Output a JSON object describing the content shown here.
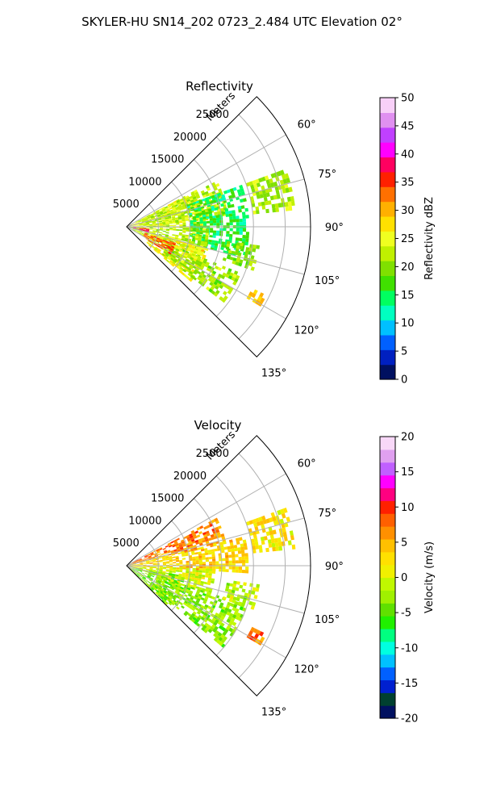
{
  "suptitle": "SKYLER-HU  SN14_202  0723_2.484 UTC Elevation 02°",
  "chart_data": [
    {
      "type": "heatmap",
      "title": "Reflectivity",
      "projection": "polar-sector",
      "radial_axis_label": "Meters",
      "radial_ticks": [
        "5000",
        "10000",
        "15000",
        "20000",
        "25000"
      ],
      "radial_tick_values": [
        5000,
        10000,
        15000,
        20000,
        25000
      ],
      "r_range": [
        0,
        29000
      ],
      "theta_range_deg": [
        45,
        135
      ],
      "angular_ticks": [
        "60°",
        "75°",
        "90°",
        "105°",
        "120°",
        "135°"
      ],
      "angular_tick_values": [
        60,
        75,
        90,
        105,
        120,
        135
      ],
      "grid": true,
      "colorbar": {
        "label": "Reflectivity dBZ",
        "range": [
          0,
          50
        ],
        "ticks": [
          "0",
          "5",
          "10",
          "15",
          "20",
          "25",
          "30",
          "35",
          "40",
          "45",
          "50"
        ],
        "tick_values": [
          0,
          5,
          10,
          15,
          20,
          25,
          30,
          35,
          40,
          45,
          50
        ],
        "colors": [
          "#001060",
          "#0020c0",
          "#0060ff",
          "#00c0ff",
          "#00ffc0",
          "#00ff60",
          "#40e000",
          "#80e000",
          "#c0f000",
          "#f0ff20",
          "#ffe000",
          "#ffb000",
          "#ff7000",
          "#ff2000",
          "#ff0060",
          "#ff00ff",
          "#c040ff",
          "#e090f0",
          "#f8d0f8"
        ]
      },
      "regions": [
        {
          "theta": [
            62,
            88
          ],
          "r": [
            0,
            12000
          ],
          "value": 24
        },
        {
          "theta": [
            63,
            85
          ],
          "r": [
            2000,
            16000
          ],
          "value": 22
        },
        {
          "theta": [
            70,
            104
          ],
          "r": [
            10000,
            19000
          ],
          "value": 15
        },
        {
          "theta": [
            88,
            118
          ],
          "r": [
            0,
            13000
          ],
          "value": 22
        },
        {
          "theta": [
            105,
            130
          ],
          "r": [
            4000,
            13000
          ],
          "value": 26
        },
        {
          "theta": [
            112,
            127
          ],
          "r": [
            7000,
            19000
          ],
          "value": 21
        },
        {
          "theta": [
            108,
            122
          ],
          "r": [
            3000,
            8000
          ],
          "value": 34
        },
        {
          "theta": [
            94,
            104
          ],
          "r": [
            1000,
            3500
          ],
          "value": 38
        },
        {
          "theta": [
            98,
            108
          ],
          "r": [
            16000,
            21000
          ],
          "value": 20
        },
        {
          "theta": [
            116,
            120
          ],
          "r": [
            22000,
            24500
          ],
          "value": 28
        },
        {
          "theta": [
            70,
            84
          ],
          "r": [
            20000,
            26500
          ],
          "value": 22
        }
      ]
    },
    {
      "type": "heatmap",
      "title": "Velocity",
      "projection": "polar-sector",
      "radial_axis_label": "Meters",
      "radial_ticks": [
        "5000",
        "10000",
        "15000",
        "20000",
        "25000"
      ],
      "radial_tick_values": [
        5000,
        10000,
        15000,
        20000,
        25000
      ],
      "r_range": [
        0,
        29000
      ],
      "theta_range_deg": [
        45,
        135
      ],
      "angular_ticks": [
        "60°",
        "75°",
        "90°",
        "105°",
        "120°",
        "135°"
      ],
      "angular_tick_values": [
        60,
        75,
        90,
        105,
        120,
        135
      ],
      "grid": true,
      "colorbar": {
        "label": "Velocity (m/s)",
        "range": [
          -20,
          20
        ],
        "ticks": [
          "-20",
          "-15",
          "-10",
          "-5",
          "0",
          "5",
          "10",
          "15",
          "20"
        ],
        "tick_values": [
          -20,
          -15,
          -10,
          -5,
          0,
          5,
          10,
          15,
          20
        ],
        "colors": [
          "#001060",
          "#004030",
          "#0020d0",
          "#0060ff",
          "#00c0ff",
          "#00ffe0",
          "#00ff80",
          "#20f000",
          "#60e000",
          "#a0f000",
          "#c0f800",
          "#f0f000",
          "#ffe000",
          "#ffc000",
          "#ff9000",
          "#ff6000",
          "#ff2000",
          "#ff0080",
          "#ff00ff",
          "#c060ff",
          "#e0a0f0",
          "#f8d8f8"
        ]
      },
      "regions": [
        {
          "theta": [
            62,
            76
          ],
          "r": [
            0,
            16000
          ],
          "value": 7
        },
        {
          "theta": [
            76,
            92
          ],
          "r": [
            0,
            19000
          ],
          "value": 3
        },
        {
          "theta": [
            92,
            108
          ],
          "r": [
            0,
            14000
          ],
          "value": 0
        },
        {
          "theta": [
            100,
            135
          ],
          "r": [
            0,
            9000
          ],
          "value": -4
        },
        {
          "theta": [
            108,
            130
          ],
          "r": [
            5000,
            20000
          ],
          "value": -3
        },
        {
          "theta": [
            98,
            108
          ],
          "r": [
            16000,
            21000
          ],
          "value": -1
        },
        {
          "theta": [
            116,
            120
          ],
          "r": [
            22000,
            24500
          ],
          "value": 8
        },
        {
          "theta": [
            70,
            84
          ],
          "r": [
            20000,
            26500
          ],
          "value": 2
        }
      ]
    }
  ]
}
